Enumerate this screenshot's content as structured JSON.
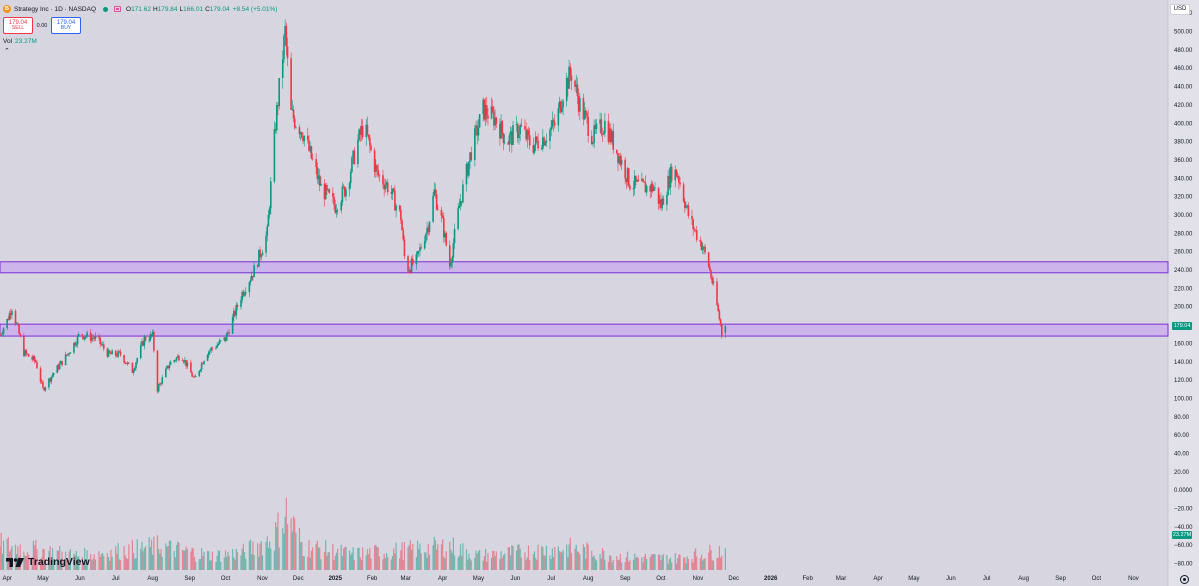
{
  "header": {
    "logo_letter": "B",
    "symbol_title": "Strategy Inc · 1D · NASDAQ",
    "open_label": "O",
    "open": "171.62",
    "high_label": "H",
    "high": "179.84",
    "low_label": "L",
    "low": "166.01",
    "close_label": "C",
    "close": "179.04",
    "change": "+8.54 (+5.01%)"
  },
  "trade": {
    "sell_price": "179.04",
    "sell_label": "SELL",
    "spread": "0.00",
    "buy_price": "179.04",
    "buy_label": "BUY"
  },
  "volume": {
    "label": "Vol",
    "value": "23.27M"
  },
  "currency": "USD",
  "price_tag": "179.04",
  "volume_tag": "23.27M",
  "logo_text": "TradingView",
  "colors": {
    "up": "#089981",
    "down": "#f23645",
    "zone_fill": "#c9a6f0",
    "zone_border": "#7b2fd6",
    "background": "#d6d5e0"
  },
  "chart_data": {
    "type": "candlestick",
    "title": "Strategy Inc · 1D · NASDAQ",
    "y_ticks": [
      "520.00",
      "500.00",
      "480.00",
      "460.00",
      "440.00",
      "420.00",
      "400.00",
      "380.00",
      "360.00",
      "340.00",
      "320.00",
      "300.00",
      "280.00",
      "260.00",
      "240.00",
      "220.00",
      "200.00",
      "180.00",
      "160.00",
      "140.00",
      "120.00",
      "100.00",
      "80.00",
      "60.00",
      "40.00",
      "20.00",
      "0.0000",
      "−20.00",
      "−40.00",
      "−60.00",
      "−80.00"
    ],
    "ylim": [
      -87,
      530
    ],
    "x_ticks": [
      "Apr",
      "May",
      "Jun",
      "Jul",
      "Aug",
      "Sep",
      "Oct",
      "Nov",
      "Dec",
      "2025",
      "Feb",
      "Mar",
      "Apr",
      "May",
      "Jun",
      "Jul",
      "Aug",
      "Sep",
      "Oct",
      "Nov",
      "Dec",
      "2026",
      "Feb",
      "Mar",
      "Apr",
      "May",
      "Jun",
      "Jul",
      "Aug",
      "Sep",
      "Oct",
      "Nov"
    ],
    "x_range": [
      "2024-03-26",
      "2026-11-30"
    ],
    "last_price": 179.04,
    "zones": [
      {
        "low": 237,
        "high": 249
      },
      {
        "low": 168,
        "high": 181
      }
    ],
    "price_path": [
      [
        "2024-03-26",
        170
      ],
      [
        "2024-04-01",
        185
      ],
      [
        "2024-04-05",
        200
      ],
      [
        "2024-04-15",
        150
      ],
      [
        "2024-04-25",
        140
      ],
      [
        "2024-05-01",
        110
      ],
      [
        "2024-05-10",
        128
      ],
      [
        "2024-05-20",
        145
      ],
      [
        "2024-06-01",
        170
      ],
      [
        "2024-06-15",
        165
      ],
      [
        "2024-06-25",
        148
      ],
      [
        "2024-07-05",
        148
      ],
      [
        "2024-07-15",
        130
      ],
      [
        "2024-07-25",
        165
      ],
      [
        "2024-08-01",
        168
      ],
      [
        "2024-08-05",
        110
      ],
      [
        "2024-08-15",
        138
      ],
      [
        "2024-08-25",
        148
      ],
      [
        "2024-09-05",
        120
      ],
      [
        "2024-09-15",
        150
      ],
      [
        "2024-10-01",
        165
      ],
      [
        "2024-10-15",
        215
      ],
      [
        "2024-10-25",
        240
      ],
      [
        "2024-11-05",
        280
      ],
      [
        "2024-11-12",
        400
      ],
      [
        "2024-11-20",
        500
      ],
      [
        "2024-11-25",
        410
      ],
      [
        "2024-12-05",
        390
      ],
      [
        "2024-12-20",
        330
      ],
      [
        "2025-01-01",
        310
      ],
      [
        "2025-01-10",
        330
      ],
      [
        "2025-01-20",
        380
      ],
      [
        "2025-01-25",
        398
      ],
      [
        "2025-02-05",
        345
      ],
      [
        "2025-02-15",
        330
      ],
      [
        "2025-02-25",
        298
      ],
      [
        "2025-03-01",
        240
      ],
      [
        "2025-03-10",
        250
      ],
      [
        "2025-03-20",
        290
      ],
      [
        "2025-03-25",
        325
      ],
      [
        "2025-04-01",
        290
      ],
      [
        "2025-04-07",
        245
      ],
      [
        "2025-04-15",
        310
      ],
      [
        "2025-04-25",
        370
      ],
      [
        "2025-05-05",
        415
      ],
      [
        "2025-05-15",
        405
      ],
      [
        "2025-05-25",
        380
      ],
      [
        "2025-06-05",
        395
      ],
      [
        "2025-06-15",
        375
      ],
      [
        "2025-06-25",
        385
      ],
      [
        "2025-07-05",
        400
      ],
      [
        "2025-07-12",
        440
      ],
      [
        "2025-07-18",
        455
      ],
      [
        "2025-07-25",
        420
      ],
      [
        "2025-08-05",
        385
      ],
      [
        "2025-08-15",
        400
      ],
      [
        "2025-08-25",
        370
      ],
      [
        "2025-09-05",
        335
      ],
      [
        "2025-09-15",
        330
      ],
      [
        "2025-09-25",
        330
      ],
      [
        "2025-10-01",
        310
      ],
      [
        "2025-10-10",
        348
      ],
      [
        "2025-10-15",
        345
      ],
      [
        "2025-10-25",
        295
      ],
      [
        "2025-11-05",
        265
      ],
      [
        "2025-11-10",
        245
      ],
      [
        "2025-11-15",
        215
      ],
      [
        "2025-11-20",
        180
      ],
      [
        "2025-11-21",
        171
      ],
      [
        "2025-11-24",
        179
      ]
    ],
    "volume_path": [
      [
        "2024-03-26",
        32
      ],
      [
        "2024-06-01",
        18
      ],
      [
        "2024-08-05",
        30
      ],
      [
        "2024-09-20",
        18
      ],
      [
        "2024-10-15",
        22
      ],
      [
        "2024-11-10",
        40
      ],
      [
        "2024-11-21",
        72
      ],
      [
        "2024-12-05",
        30
      ],
      [
        "2025-01-15",
        20
      ],
      [
        "2025-03-01",
        25
      ],
      [
        "2025-04-07",
        30
      ],
      [
        "2025-05-01",
        18
      ],
      [
        "2025-07-15",
        28
      ],
      [
        "2025-09-01",
        16
      ],
      [
        "2025-10-15",
        15
      ],
      [
        "2025-11-21",
        25
      ]
    ]
  }
}
